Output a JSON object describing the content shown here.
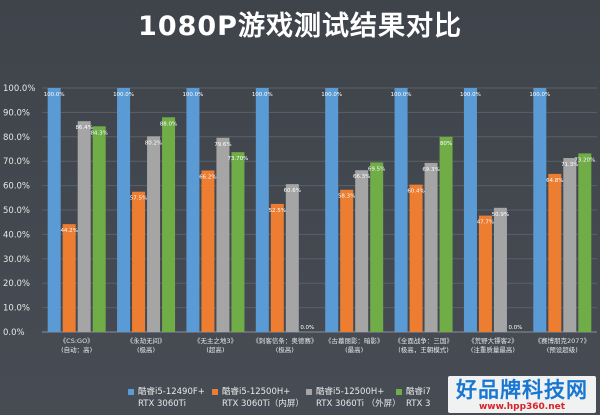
{
  "chart_data": {
    "type": "bar",
    "title": "1080P游戏测试结果对比",
    "categories": [
      [
        "《CS:GO》",
        "(自动：高)"
      ],
      [
        "《永劫无间》",
        "(极高)"
      ],
      [
        "《无主之地3》",
        "(超高)"
      ],
      [
        "《刺客信条：奥德赛》",
        "(极高)"
      ],
      [
        "《古墓丽影：暗影》",
        "(最高)"
      ],
      [
        "《全面战争：三国》",
        "(极高，王朝模式)"
      ],
      [
        "《荒野大镖客2》",
        "(注重质量最高)"
      ],
      [
        "《赛博朋克2077》",
        "(预设超级)"
      ]
    ],
    "ylim": [
      0,
      100
    ],
    "yticks": [
      "0.0%",
      "10.0%",
      "20.0%",
      "30.0%",
      "40.0%",
      "50.0%",
      "60.0%",
      "70.0%",
      "80.0%",
      "90.0%",
      "100.0%"
    ],
    "grid": true,
    "legend_position": "bottom",
    "series": [
      {
        "name": "酷睿i5-12490F+ RTX 3060Ti",
        "color": "#5b9bd5",
        "values": [
          100.0,
          100.0,
          100.0,
          100.0,
          100.0,
          100.0,
          100.0,
          100.0
        ],
        "labels": [
          "100.0%",
          "100.0%",
          "100.0%",
          "100.0%",
          "100.0%",
          "100.0%",
          "100.0%",
          "100.0%"
        ]
      },
      {
        "name": "酷睿i5-12500H+ RTX 3060Ti（内屏）",
        "color": "#ed7d31",
        "values": [
          44.2,
          57.5,
          66.2,
          52.5,
          58.3,
          60.4,
          47.7,
          64.8
        ],
        "labels": [
          "44.2%",
          "57.5%",
          "66.2%",
          "52.5%",
          "58.3%",
          "60.4%",
          "47.7%",
          "64.8%"
        ]
      },
      {
        "name": "酷睿i5-12500H+ RTX 3060Ti（外屏）",
        "color": "#a5a5a5",
        "values": [
          86.4,
          80.2,
          79.6,
          60.6,
          66.3,
          69.3,
          50.9,
          71.3
        ],
        "labels": [
          "86.4%",
          "80.2%",
          "79.6%",
          "60.6%",
          "66.3%",
          "69.3%",
          "50.9%",
          "71.3%"
        ]
      },
      {
        "name": "酷睿i7 RTX 3",
        "color": "#70ad47",
        "values": [
          84.3,
          88.0,
          73.7,
          0.0,
          69.5,
          80.0,
          0.0,
          73.2
        ],
        "labels": [
          "84.3%",
          "88.0%",
          "73.70%",
          "0.0%",
          "69.5%",
          "80%",
          "0.0%",
          "73.20%"
        ]
      }
    ]
  },
  "legend": [
    {
      "line1": "酷睿i5-12490F+",
      "line2": "RTX 3060Ti"
    },
    {
      "line1": "酷睿i5-12500H+",
      "line2": "RTX 3060Ti（内屏）"
    },
    {
      "line1": "酷睿i5-12500H+",
      "line2": "RTX 3060Ti （外屏）"
    },
    {
      "line1": "酷睿i7",
      "line2": "RTX 3"
    }
  ],
  "watermark": {
    "text": "好品牌科技网",
    "url": "www.hpp360.net"
  }
}
